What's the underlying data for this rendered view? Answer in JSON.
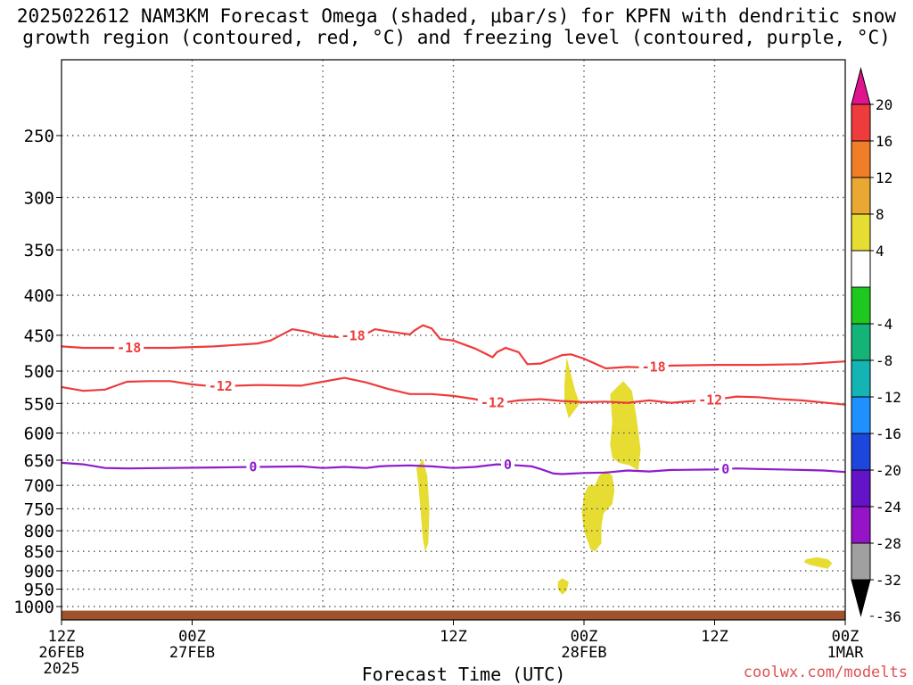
{
  "title_line1": "2025022612 NAM3KM Forecast Omega (shaded, μbar/s) for KPFN with dendritic snow",
  "title_line2": "growth region (contoured, red, °C) and freezing level (contoured, purple, °C)",
  "credit": "coolwx.com/modelts",
  "chart_data": {
    "type": "time-height contour",
    "title": "2025022612 NAM3KM Forecast Omega (shaded, μbar/s) for KPFN with dendritic snow growth region (contoured, red, °C) and freezing level (contoured, purple, °C)",
    "xlabel": "Forecast Time (UTC)",
    "ylabel": "",
    "xlim_hours": [
      0,
      36
    ],
    "ylim_hpa": [
      200,
      1040
    ],
    "y_scale": "log-pressure (inverted)",
    "grid": true,
    "x_ticks": [
      {
        "hour": 0,
        "lines": [
          "12Z",
          "26FEB",
          "2025"
        ]
      },
      {
        "hour": 6,
        "lines": [
          "00Z",
          "27FEB"
        ]
      },
      {
        "hour": 18,
        "lines": [
          "12Z"
        ]
      },
      {
        "hour": 24,
        "lines": [
          "00Z",
          "28FEB"
        ]
      },
      {
        "hour": 30,
        "lines": [
          "12Z"
        ]
      },
      {
        "hour": 36,
        "lines": [
          "00Z",
          "1MAR"
        ]
      }
    ],
    "x_grid_hours": [
      6,
      12,
      18,
      24,
      30
    ],
    "y_ticks": [
      250,
      300,
      350,
      400,
      450,
      500,
      550,
      600,
      650,
      700,
      750,
      800,
      850,
      900,
      950,
      1000
    ],
    "contours": [
      {
        "name": "-18",
        "color": "#ee3b3b",
        "label_hours": [
          3.1,
          13.4,
          27.2
        ],
        "points": [
          [
            0,
            465
          ],
          [
            1,
            467
          ],
          [
            3,
            467
          ],
          [
            5,
            467
          ],
          [
            7,
            465
          ],
          [
            9,
            461
          ],
          [
            9.6,
            457
          ],
          [
            10.2,
            448
          ],
          [
            10.6,
            442
          ],
          [
            11.2,
            445
          ],
          [
            12,
            451
          ],
          [
            13,
            453
          ],
          [
            14,
            448
          ],
          [
            14.4,
            442
          ],
          [
            15,
            445
          ],
          [
            16,
            449
          ],
          [
            16.2,
            444
          ],
          [
            16.6,
            437
          ],
          [
            17,
            441
          ],
          [
            17.4,
            455
          ],
          [
            18,
            457
          ],
          [
            19,
            468
          ],
          [
            19.8,
            480
          ],
          [
            20,
            473
          ],
          [
            20.4,
            467
          ],
          [
            21,
            473
          ],
          [
            21.4,
            490
          ],
          [
            22,
            489
          ],
          [
            23,
            477
          ],
          [
            23.4,
            476
          ],
          [
            24,
            482
          ],
          [
            25,
            496
          ],
          [
            26,
            494
          ],
          [
            27,
            495
          ],
          [
            28,
            492
          ],
          [
            30,
            491
          ],
          [
            32,
            491
          ],
          [
            34,
            490
          ],
          [
            36,
            486
          ]
        ]
      },
      {
        "name": "-12",
        "color": "#ee3b3b",
        "label_hours": [
          7.3,
          19.8,
          29.8
        ],
        "points": [
          [
            0,
            524
          ],
          [
            1,
            530
          ],
          [
            2,
            528
          ],
          [
            3,
            516
          ],
          [
            4,
            515
          ],
          [
            5,
            515
          ],
          [
            6,
            520
          ],
          [
            7,
            523
          ],
          [
            9,
            521
          ],
          [
            11,
            522
          ],
          [
            12,
            516
          ],
          [
            13,
            510
          ],
          [
            14,
            517
          ],
          [
            15,
            527
          ],
          [
            16,
            535
          ],
          [
            17,
            535
          ],
          [
            18,
            538
          ],
          [
            19,
            543
          ],
          [
            19.6,
            548
          ],
          [
            20,
            550
          ],
          [
            21,
            545
          ],
          [
            22,
            543
          ],
          [
            23,
            546
          ],
          [
            24,
            548
          ],
          [
            25,
            547
          ],
          [
            26,
            549
          ],
          [
            27,
            545
          ],
          [
            28,
            549
          ],
          [
            29,
            546
          ],
          [
            30,
            544
          ],
          [
            31,
            539
          ],
          [
            32,
            540
          ],
          [
            33,
            543
          ],
          [
            34,
            545
          ],
          [
            36,
            552
          ]
        ]
      },
      {
        "name": "0",
        "color": "#8c1ccc",
        "label_hours": [
          8.8,
          20.5,
          30.5
        ],
        "points": [
          [
            0,
            655
          ],
          [
            1,
            658
          ],
          [
            2,
            665
          ],
          [
            3,
            666
          ],
          [
            5,
            665
          ],
          [
            7,
            664
          ],
          [
            9,
            663
          ],
          [
            11,
            662
          ],
          [
            12,
            665
          ],
          [
            13,
            663
          ],
          [
            14,
            665
          ],
          [
            14.6,
            662
          ],
          [
            15,
            661
          ],
          [
            16,
            660
          ],
          [
            17,
            662
          ],
          [
            18,
            665
          ],
          [
            19,
            663
          ],
          [
            20,
            658
          ],
          [
            21,
            660
          ],
          [
            21.6,
            662
          ],
          [
            22,
            667
          ],
          [
            22.6,
            676
          ],
          [
            23,
            677
          ],
          [
            24,
            675
          ],
          [
            25,
            674
          ],
          [
            26,
            670
          ],
          [
            27,
            672
          ],
          [
            28,
            669
          ],
          [
            30,
            668
          ],
          [
            31,
            666
          ],
          [
            32,
            667
          ],
          [
            34,
            669
          ],
          [
            35,
            670
          ],
          [
            36,
            673
          ]
        ]
      }
    ],
    "omega_shaded_regions": [
      {
        "color": "#e6dc32",
        "points": [
          [
            16.6,
            648
          ],
          [
            16.8,
            680
          ],
          [
            16.9,
            750
          ],
          [
            16.85,
            830
          ],
          [
            16.7,
            850
          ],
          [
            16.6,
            820
          ],
          [
            16.4,
            700
          ],
          [
            16.3,
            665
          ]
        ]
      },
      {
        "color": "#e6dc32",
        "points": [
          [
            23.2,
            480
          ],
          [
            23.6,
            530
          ],
          [
            23.8,
            550
          ],
          [
            23.3,
            575
          ],
          [
            23.1,
            548
          ],
          [
            23.1,
            520
          ]
        ]
      },
      {
        "color": "#e6dc32",
        "points": [
          [
            25.2,
            535
          ],
          [
            25.8,
            515
          ],
          [
            26.2,
            530
          ],
          [
            26.4,
            570
          ],
          [
            26.6,
            630
          ],
          [
            26.5,
            670
          ],
          [
            26.1,
            660
          ],
          [
            25.6,
            655
          ],
          [
            25.3,
            645
          ],
          [
            25.2,
            620
          ],
          [
            25.3,
            580
          ]
        ]
      },
      {
        "color": "#e6dc32",
        "points": [
          [
            24.5,
            700
          ],
          [
            24.7,
            680
          ],
          [
            25.0,
            670
          ],
          [
            25.3,
            680
          ],
          [
            25.4,
            710
          ],
          [
            25.3,
            740
          ],
          [
            24.9,
            760
          ],
          [
            24.8,
            790
          ],
          [
            24.8,
            830
          ],
          [
            24.5,
            850
          ],
          [
            24.3,
            845
          ],
          [
            24.0,
            800
          ],
          [
            23.9,
            760
          ],
          [
            24.0,
            720
          ],
          [
            24.2,
            700
          ]
        ]
      },
      {
        "color": "#e6dc32",
        "points": [
          [
            22.8,
            930
          ],
          [
            23.0,
            920
          ],
          [
            23.3,
            930
          ],
          [
            23.2,
            955
          ],
          [
            23.0,
            965
          ],
          [
            22.8,
            950
          ]
        ]
      },
      {
        "color": "#e6dc32",
        "points": [
          [
            34.2,
            870
          ],
          [
            34.7,
            865
          ],
          [
            35.2,
            870
          ],
          [
            35.4,
            880
          ],
          [
            35.2,
            895
          ],
          [
            34.8,
            890
          ],
          [
            34.4,
            885
          ],
          [
            34.1,
            878
          ]
        ]
      }
    ],
    "ground_band": {
      "color": "#a0522d",
      "top_hpa": 1012
    },
    "colorbar": {
      "labels": [
        "20",
        "16",
        "12",
        "8",
        "4",
        "-4",
        "-8",
        "-12",
        "-16",
        "-20",
        "-24",
        "-28",
        "-32",
        "-36"
      ],
      "top_triangle_color": "#e0148c",
      "bottom_triangle_color": "#000000",
      "segments": [
        "#ee3b3b",
        "#f07d28",
        "#e8a832",
        "#e6dc32",
        "#ffffff",
        "#1ec81e",
        "#14b478",
        "#14b4b4",
        "#1e90ff",
        "#1e46dc",
        "#6414c8",
        "#9614c8",
        "#a0a0a0"
      ]
    }
  }
}
